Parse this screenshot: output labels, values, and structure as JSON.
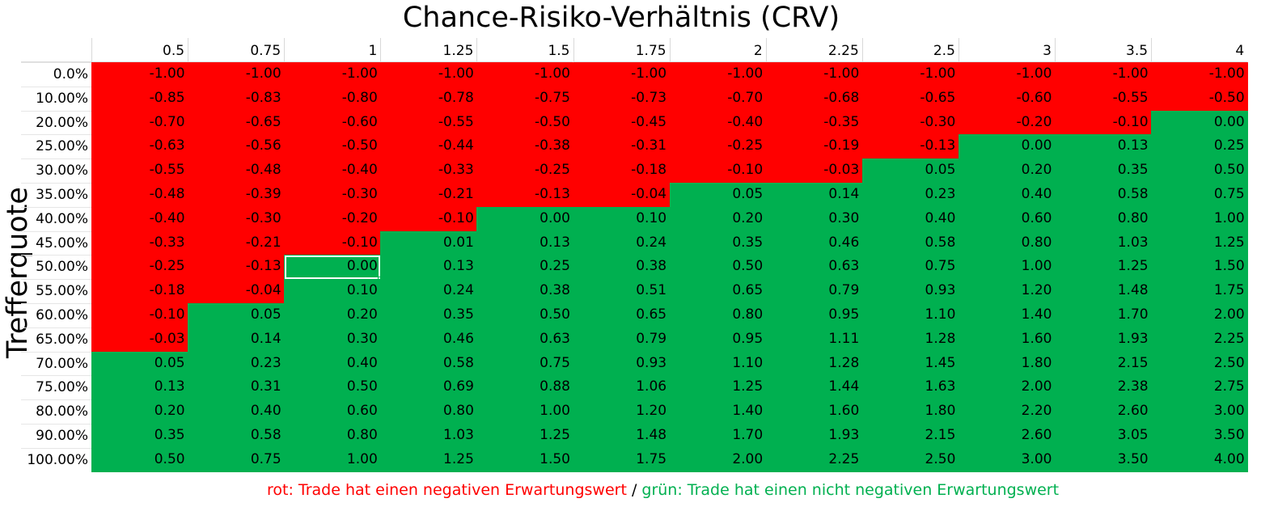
{
  "chart_data": {
    "type": "heatmap",
    "title": "Chance-Risiko-Verhältnis (CRV)",
    "ylabel": "Trefferquote",
    "x_labels": [
      "0.5",
      "0.75",
      "1",
      "1.25",
      "1.5",
      "1.75",
      "2",
      "2.25",
      "2.5",
      "3",
      "3.5",
      "4"
    ],
    "y_labels": [
      "0.0%",
      "10.00%",
      "20.00%",
      "25.00%",
      "30.00%",
      "35.00%",
      "40.00%",
      "45.00%",
      "50.00%",
      "55.00%",
      "60.00%",
      "65.00%",
      "70.00%",
      "75.00%",
      "80.00%",
      "90.00%",
      "100.00%"
    ],
    "values": [
      [
        "-1.00",
        "-1.00",
        "-1.00",
        "-1.00",
        "-1.00",
        "-1.00",
        "-1.00",
        "-1.00",
        "-1.00",
        "-1.00",
        "-1.00",
        "-1.00"
      ],
      [
        "-0.85",
        "-0.83",
        "-0.80",
        "-0.78",
        "-0.75",
        "-0.73",
        "-0.70",
        "-0.68",
        "-0.65",
        "-0.60",
        "-0.55",
        "-0.50"
      ],
      [
        "-0.70",
        "-0.65",
        "-0.60",
        "-0.55",
        "-0.50",
        "-0.45",
        "-0.40",
        "-0.35",
        "-0.30",
        "-0.20",
        "-0.10",
        "0.00"
      ],
      [
        "-0.63",
        "-0.56",
        "-0.50",
        "-0.44",
        "-0.38",
        "-0.31",
        "-0.25",
        "-0.19",
        "-0.13",
        "0.00",
        "0.13",
        "0.25"
      ],
      [
        "-0.55",
        "-0.48",
        "-0.40",
        "-0.33",
        "-0.25",
        "-0.18",
        "-0.10",
        "-0.03",
        "0.05",
        "0.20",
        "0.35",
        "0.50"
      ],
      [
        "-0.48",
        "-0.39",
        "-0.30",
        "-0.21",
        "-0.13",
        "-0.04",
        "0.05",
        "0.14",
        "0.23",
        "0.40",
        "0.58",
        "0.75"
      ],
      [
        "-0.40",
        "-0.30",
        "-0.20",
        "-0.10",
        "0.00",
        "0.10",
        "0.20",
        "0.30",
        "0.40",
        "0.60",
        "0.80",
        "1.00"
      ],
      [
        "-0.33",
        "-0.21",
        "-0.10",
        "0.01",
        "0.13",
        "0.24",
        "0.35",
        "0.46",
        "0.58",
        "0.80",
        "1.03",
        "1.25"
      ],
      [
        "-0.25",
        "-0.13",
        "0.00",
        "0.13",
        "0.25",
        "0.38",
        "0.50",
        "0.63",
        "0.75",
        "1.00",
        "1.25",
        "1.50"
      ],
      [
        "-0.18",
        "-0.04",
        "0.10",
        "0.24",
        "0.38",
        "0.51",
        "0.65",
        "0.79",
        "0.93",
        "1.20",
        "1.48",
        "1.75"
      ],
      [
        "-0.10",
        "0.05",
        "0.20",
        "0.35",
        "0.50",
        "0.65",
        "0.80",
        "0.95",
        "1.10",
        "1.40",
        "1.70",
        "2.00"
      ],
      [
        "-0.03",
        "0.14",
        "0.30",
        "0.46",
        "0.63",
        "0.79",
        "0.95",
        "1.11",
        "1.28",
        "1.60",
        "1.93",
        "2.25"
      ],
      [
        "0.05",
        "0.23",
        "0.40",
        "0.58",
        "0.75",
        "0.93",
        "1.10",
        "1.28",
        "1.45",
        "1.80",
        "2.15",
        "2.50"
      ],
      [
        "0.13",
        "0.31",
        "0.50",
        "0.69",
        "0.88",
        "1.06",
        "1.25",
        "1.44",
        "1.63",
        "2.00",
        "2.38",
        "2.75"
      ],
      [
        "0.20",
        "0.40",
        "0.60",
        "0.80",
        "1.00",
        "1.20",
        "1.40",
        "1.60",
        "1.80",
        "2.20",
        "2.60",
        "3.00"
      ],
      [
        "0.35",
        "0.58",
        "0.80",
        "1.03",
        "1.25",
        "1.48",
        "1.70",
        "1.93",
        "2.15",
        "2.60",
        "3.05",
        "3.50"
      ],
      [
        "0.50",
        "0.75",
        "1.00",
        "1.25",
        "1.50",
        "1.75",
        "2.00",
        "2.25",
        "2.50",
        "3.00",
        "3.50",
        "4.00"
      ]
    ],
    "negative_color": "#ff0000",
    "positive_color": "#00b050",
    "selected_cell": {
      "row": 8,
      "col": 2
    }
  },
  "legend": {
    "negative_text": "rot: Trade hat einen negativen Erwartungswert",
    "separator": " / ",
    "positive_text": "grün: Trade hat einen nicht negativen Erwartungswert",
    "negative_color": "#ff0000",
    "positive_color": "#00b050"
  }
}
